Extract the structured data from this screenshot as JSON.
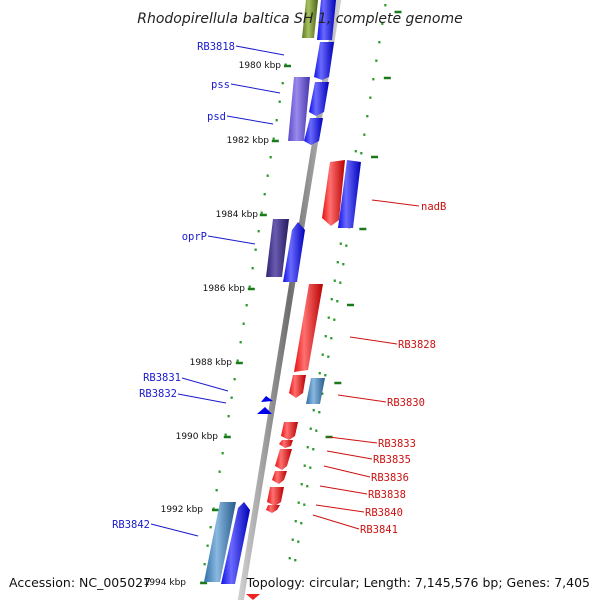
{
  "title": "Rhodopirellula baltica SH 1, complete genome",
  "footer": {
    "accession": "Accession: NC_005027",
    "topology": "Topology: circular; Length: 7,145,576 bp; Genes: 7,405"
  },
  "axis": {
    "ticks": [
      "1980 kbp",
      "1982 kbp",
      "1984 kbp",
      "1986 kbp",
      "1988 kbp",
      "1990 kbp",
      "1992 kbp",
      "1994 kbp"
    ]
  },
  "genes_left": [
    {
      "name": "RB3818"
    },
    {
      "name": "pss"
    },
    {
      "name": "psd"
    },
    {
      "name": "oprP"
    },
    {
      "name": "RB3831"
    },
    {
      "name": "RB3832"
    },
    {
      "name": "RB3842"
    }
  ],
  "genes_right": [
    {
      "name": "nadB"
    },
    {
      "name": "RB3828"
    },
    {
      "name": "RB3830"
    },
    {
      "name": "RB3833"
    },
    {
      "name": "RB3835"
    },
    {
      "name": "RB3836"
    },
    {
      "name": "RB3838"
    },
    {
      "name": "RB3840"
    },
    {
      "name": "RB3841"
    }
  ],
  "colors": {
    "forward_strand": "#0000ee",
    "reverse_strand": "#ee0000",
    "backbone": "#9a9a9a",
    "tick_green": "#1a7a1a",
    "dot_green": "#2a9a2a"
  }
}
